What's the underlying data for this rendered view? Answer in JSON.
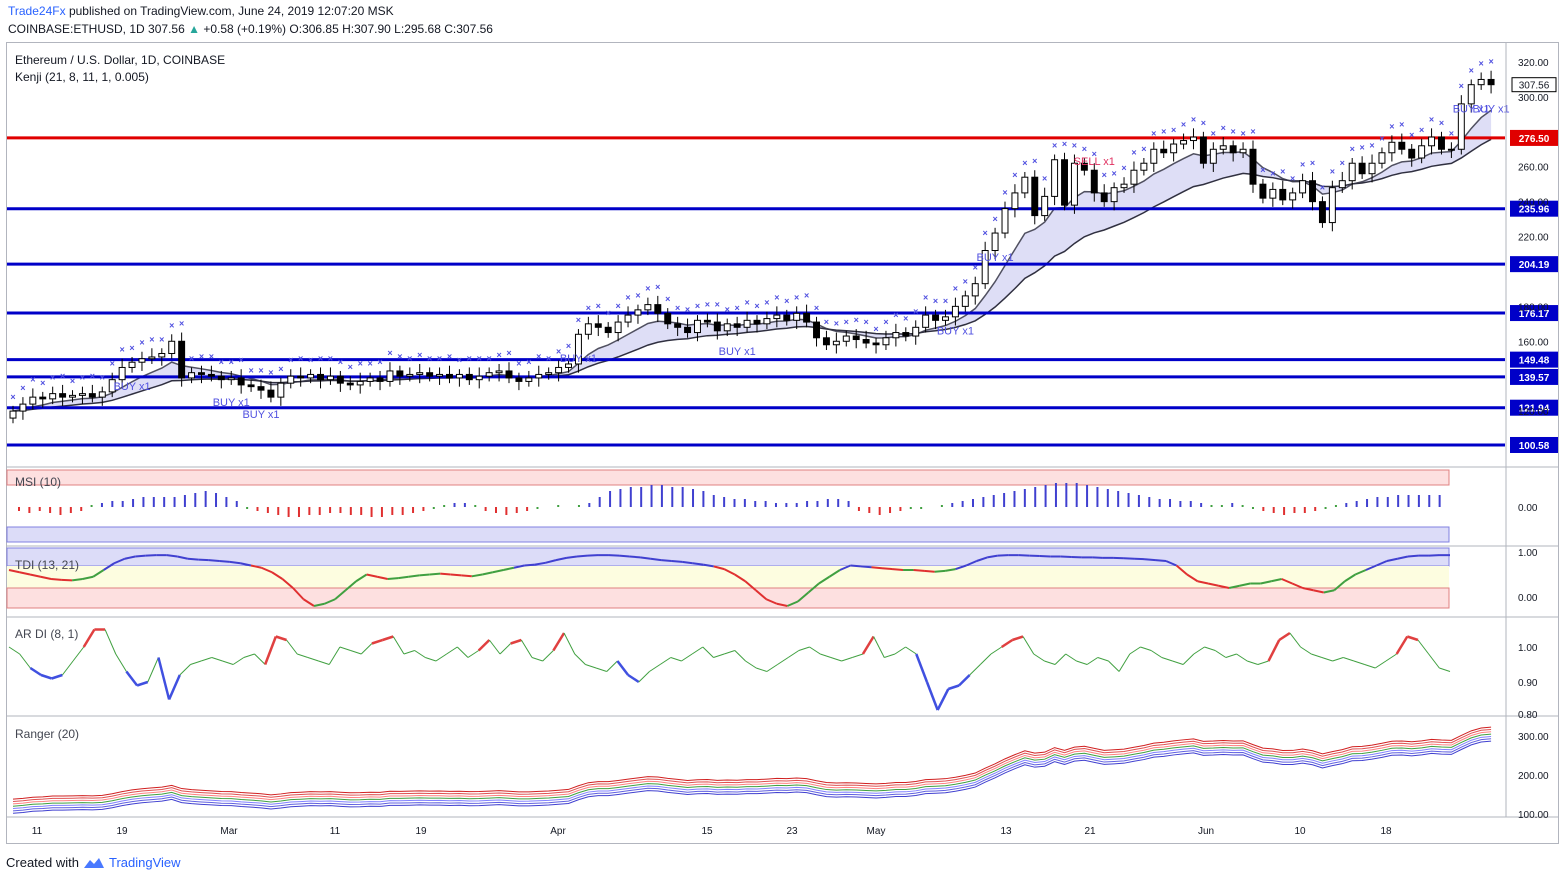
{
  "header": {
    "publisher": "Trade24Fx",
    "published_text": "published on TradingView.com, June 24, 2019 12:07:20 MSK",
    "symbol": "COINBASE:ETHUSD, 1D",
    "last": "307.56",
    "change": "+0.58 (+0.19%)",
    "o_label": "O:",
    "o": "306.85",
    "h_label": "H:",
    "h": "307.90",
    "l_label": "L:",
    "l": "295.68",
    "c_label": "C:",
    "c": "307.56"
  },
  "footer": {
    "created_with": "Created with",
    "brand": "TradingView"
  },
  "colors": {
    "up_candle": "#ffffff",
    "down_candle": "#000000",
    "level_line": "#0000c8",
    "key_level": "#e00000",
    "marker": "#5050e0",
    "sell": "#e03060",
    "band_fill": "#c8c8f0",
    "grid": "#f0f3fa"
  },
  "chart_data": [
    {
      "type": "candlestick",
      "title": "Ethereum / U.S. Dollar, 1D, COINBASE",
      "overlay": "Kenji (21, 8, 11, 1, 0.005)",
      "x_ticks": [
        "11",
        "19",
        "Mar",
        "11",
        "19",
        "Apr",
        "15",
        "23",
        "May",
        "13",
        "21",
        "Jun",
        "10",
        "18"
      ],
      "y_ticks": [
        "320.00",
        "300.00",
        "260.00",
        "240.00",
        "220.00",
        "180.00",
        "160.00",
        "120.00"
      ],
      "ylim": [
        95,
        330
      ],
      "last_price_label": "307.56",
      "horizontal_levels": [
        276.5,
        235.96,
        204.19,
        176.17,
        149.48,
        139.57,
        121.94,
        100.58
      ],
      "level_labels": [
        "276.50",
        "235.96",
        "204.19",
        "176.17",
        "149.48",
        "139.57",
        "121.94",
        "100.58"
      ],
      "key_level": 276.5,
      "signals": [
        {
          "text": "BUY x1",
          "bar": 12
        },
        {
          "text": "BUY x1",
          "bar": 22
        },
        {
          "text": "BUY x1",
          "bar": 25
        },
        {
          "text": "BUY x1",
          "bar": 57
        },
        {
          "text": "BUY x1",
          "bar": 73
        },
        {
          "text": "BUY x1",
          "bar": 95
        },
        {
          "text": "BUY x1",
          "bar": 99
        },
        {
          "text": "SELL x1",
          "bar": 109
        },
        {
          "text": "BUY x1",
          "bar": 147
        },
        {
          "text": "BUY x1",
          "bar": 176
        }
      ],
      "close": [
        120,
        124,
        128,
        127,
        130,
        128,
        129,
        130,
        128,
        131,
        138,
        145,
        148,
        150,
        151,
        153,
        160,
        139,
        142,
        141,
        140,
        138,
        139,
        135,
        134,
        132,
        128,
        136,
        140,
        139,
        141,
        138,
        140,
        136,
        135,
        137,
        139,
        137,
        143,
        140,
        141,
        142,
        140,
        141,
        139,
        141,
        138,
        140,
        142,
        143,
        139,
        137,
        139,
        141,
        142,
        145,
        147,
        164,
        170,
        168,
        165,
        171,
        175,
        178,
        181,
        176,
        170,
        168,
        165,
        172,
        171,
        166,
        170,
        168,
        172,
        170,
        173,
        175,
        172,
        176,
        171,
        162,
        158,
        160,
        163,
        161,
        159,
        158,
        162,
        165,
        163,
        168,
        175,
        172,
        174,
        180,
        186,
        193,
        212,
        222,
        236,
        245,
        254,
        232,
        243,
        264,
        238,
        262,
        258,
        245,
        240,
        248,
        250,
        258,
        262,
        270,
        268,
        273,
        275,
        277,
        262,
        270,
        272,
        268,
        270,
        250,
        242,
        247,
        241,
        245,
        252,
        240,
        228,
        248,
        252,
        262,
        256,
        262,
        268,
        274,
        270,
        265,
        272,
        277,
        270,
        270,
        296,
        307,
        310,
        307
      ]
    },
    {
      "type": "bar",
      "title": "MSI (10)",
      "y_ticks": [
        "0.00"
      ],
      "values": [
        -0.2,
        -0.3,
        -0.2,
        -0.3,
        -0.4,
        -0.3,
        -0.2,
        0.1,
        0.2,
        0.3,
        0.3,
        0.4,
        0.5,
        0.5,
        0.5,
        0.5,
        0.6,
        0.7,
        0.8,
        0.7,
        0.5,
        0.3,
        -0.1,
        -0.2,
        -0.3,
        -0.4,
        -0.5,
        -0.5,
        -0.4,
        -0.4,
        -0.3,
        -0.3,
        -0.4,
        -0.4,
        -0.5,
        -0.5,
        -0.4,
        -0.4,
        -0.3,
        -0.2,
        -0.1,
        0.1,
        0.2,
        0.2,
        0.1,
        -0.2,
        -0.3,
        -0.4,
        -0.3,
        -0.2,
        -0.1,
        0.0,
        0.1,
        0.0,
        0.1,
        0.2,
        0.5,
        0.8,
        0.9,
        1.0,
        1.0,
        1.1,
        1.1,
        1.0,
        1.0,
        0.9,
        0.8,
        0.6,
        0.5,
        0.4,
        0.4,
        0.3,
        0.3,
        0.2,
        0.2,
        0.2,
        0.3,
        0.3,
        0.4,
        0.4,
        0.3,
        -0.2,
        -0.3,
        -0.4,
        -0.3,
        -0.2,
        -0.1,
        -0.1,
        0.0,
        0.1,
        0.2,
        0.3,
        0.4,
        0.5,
        0.6,
        0.7,
        0.8,
        0.9,
        1.0,
        1.1,
        1.2,
        1.2,
        1.2,
        1.1,
        1.0,
        0.9,
        0.8,
        0.7,
        0.6,
        0.5,
        0.4,
        0.4,
        0.3,
        0.3,
        0.2,
        0.1,
        0.1,
        0.2,
        0.1,
        -0.1,
        -0.2,
        -0.3,
        -0.4,
        -0.3,
        -0.3,
        -0.2,
        -0.1,
        0.1,
        0.2,
        0.3,
        0.4,
        0.5,
        0.5,
        0.6,
        0.6,
        0.6,
        0.6,
        0.6
      ]
    },
    {
      "type": "line",
      "title": "TDI (13, 21)",
      "y_ticks": [
        "1.00",
        "0.00"
      ],
      "ylim": [
        -0.3,
        1.05
      ],
      "values": [
        0.6,
        0.55,
        0.5,
        0.45,
        0.4,
        0.38,
        0.37,
        0.4,
        0.45,
        0.6,
        0.75,
        0.85,
        0.9,
        0.92,
        0.93,
        0.93,
        0.9,
        0.85,
        0.83,
        0.82,
        0.8,
        0.78,
        0.75,
        0.7,
        0.65,
        0.55,
        0.4,
        0.2,
        -0.05,
        -0.2,
        -0.15,
        -0.05,
        0.15,
        0.35,
        0.5,
        0.45,
        0.4,
        0.42,
        0.45,
        0.48,
        0.5,
        0.52,
        0.5,
        0.48,
        0.46,
        0.5,
        0.55,
        0.6,
        0.65,
        0.7,
        0.72,
        0.76,
        0.82,
        0.87,
        0.9,
        0.92,
        0.93,
        0.93,
        0.92,
        0.9,
        0.88,
        0.85,
        0.82,
        0.8,
        0.78,
        0.75,
        0.72,
        0.68,
        0.62,
        0.5,
        0.35,
        0.15,
        -0.05,
        -0.15,
        -0.2,
        -0.1,
        0.1,
        0.3,
        0.45,
        0.6,
        0.7,
        0.68,
        0.66,
        0.64,
        0.62,
        0.6,
        0.6,
        0.58,
        0.56,
        0.58,
        0.62,
        0.7,
        0.8,
        0.88,
        0.92,
        0.93,
        0.93,
        0.92,
        0.91,
        0.9,
        0.9,
        0.89,
        0.88,
        0.88,
        0.87,
        0.87,
        0.86,
        0.85,
        0.84,
        0.82,
        0.8,
        0.7,
        0.5,
        0.35,
        0.3,
        0.25,
        0.2,
        0.25,
        0.3,
        0.3,
        0.35,
        0.4,
        0.3,
        0.2,
        0.15,
        0.1,
        0.15,
        0.35,
        0.5,
        0.6,
        0.7,
        0.8,
        0.85,
        0.9,
        0.92,
        0.92,
        0.93,
        0.93
      ]
    },
    {
      "type": "line",
      "title": "AR DI (8, 1)",
      "y_ticks": [
        "1.00",
        "0.90",
        "0.80"
      ],
      "ylim": [
        0.8,
        1.1
      ],
      "values": [
        1.0,
        0.98,
        0.94,
        0.92,
        0.91,
        0.92,
        0.96,
        1.0,
        1.05,
        1.05,
        0.98,
        0.93,
        0.89,
        0.9,
        0.97,
        0.85,
        0.92,
        0.95,
        0.96,
        0.97,
        0.96,
        0.95,
        0.97,
        0.98,
        0.95,
        1.03,
        1.02,
        0.98,
        0.97,
        0.96,
        0.95,
        1.0,
        0.99,
        0.98,
        1.01,
        1.02,
        1.03,
        0.98,
        0.99,
        0.97,
        0.96,
        0.98,
        1.0,
        0.97,
        0.99,
        1.02,
        0.98,
        1.01,
        1.02,
        0.97,
        0.96,
        0.99,
        1.04,
        0.98,
        0.95,
        0.94,
        0.93,
        0.96,
        0.92,
        0.9,
        0.93,
        0.95,
        0.97,
        0.96,
        0.98,
        1.0,
        0.97,
        0.98,
        0.99,
        0.96,
        0.94,
        0.93,
        0.95,
        0.97,
        0.99,
        1.0,
        0.98,
        0.97,
        0.96,
        0.97,
        0.98,
        1.03,
        0.97,
        0.98,
        1.0,
        0.98,
        0.9,
        0.82,
        0.88,
        0.89,
        0.92,
        0.95,
        0.98,
        1.0,
        1.02,
        1.03,
        0.98,
        0.96,
        0.95,
        0.98,
        0.96,
        0.95,
        0.97,
        0.96,
        0.93,
        0.98,
        1.0,
        0.99,
        0.97,
        0.96,
        0.95,
        0.98,
        1.0,
        0.99,
        0.97,
        0.98,
        0.96,
        0.95,
        0.96,
        1.02,
        1.04,
        1.0,
        0.98,
        0.97,
        0.96,
        0.97,
        0.96,
        0.95,
        0.94,
        0.96,
        0.98,
        1.03,
        1.02,
        0.98,
        0.94,
        0.93
      ]
    },
    {
      "type": "line",
      "title": "Ranger (20)",
      "y_ticks": [
        "300.00",
        "200.00",
        "100.00"
      ],
      "ylim": [
        95,
        330
      ],
      "series_offsets": [
        -18,
        -12,
        -6,
        0,
        6,
        12,
        18
      ]
    }
  ]
}
